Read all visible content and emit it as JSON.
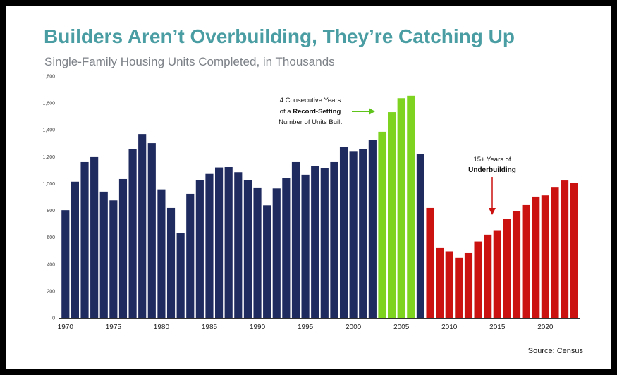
{
  "title": "Builders Aren’t Overbuilding, They’re Catching Up",
  "subtitle": "Single-Family Housing Units Completed, in Thousands",
  "source": "Source: Census",
  "colors": {
    "normal": "#1f2a5f",
    "record": "#7ed321",
    "under": "#cc1111",
    "title": "#4a9ea3"
  },
  "annotations": {
    "record": {
      "line1": "4 Consecutive Years",
      "line2_pre": "of a ",
      "line2_bold": "Record-Setting",
      "line3": "Number of Units Built"
    },
    "under": {
      "line1": "15+ Years of",
      "line2": "Underbuilding"
    }
  },
  "chart_data": {
    "type": "bar",
    "title": "Builders Aren’t Overbuilding, They’re Catching Up",
    "subtitle": "Single-Family Housing Units Completed, in Thousands",
    "ylim": [
      0,
      1800
    ],
    "yticks": [
      0,
      200,
      400,
      600,
      800,
      1000,
      1200,
      1400,
      1600,
      1800
    ],
    "ytick_labels": [
      "0",
      "200",
      "400",
      "600",
      "800",
      "1,000",
      "1,200",
      "1,400",
      "1,600",
      "1,800"
    ],
    "xticks": [
      "1970",
      "1975",
      "1980",
      "1985",
      "1990",
      "1995",
      "2000",
      "2005",
      "2010",
      "2015",
      "2020"
    ],
    "categories": [
      1970,
      1971,
      1972,
      1973,
      1974,
      1975,
      1976,
      1977,
      1978,
      1979,
      1980,
      1981,
      1982,
      1983,
      1984,
      1985,
      1986,
      1987,
      1988,
      1989,
      1990,
      1991,
      1992,
      1993,
      1994,
      1995,
      1996,
      1997,
      1998,
      1999,
      2000,
      2001,
      2002,
      2003,
      2004,
      2005,
      2006,
      2007,
      2008,
      2009,
      2010,
      2011,
      2012,
      2013,
      2014,
      2015,
      2016,
      2017,
      2018,
      2019,
      2020,
      2021,
      2022,
      2023
    ],
    "values": [
      802,
      1014,
      1160,
      1197,
      940,
      875,
      1034,
      1258,
      1369,
      1301,
      957,
      819,
      631,
      924,
      1025,
      1072,
      1120,
      1123,
      1085,
      1026,
      966,
      838,
      964,
      1039,
      1160,
      1066,
      1129,
      1116,
      1160,
      1270,
      1242,
      1256,
      1325,
      1386,
      1532,
      1636,
      1654,
      1218,
      819,
      520,
      496,
      447,
      483,
      569,
      620,
      648,
      738,
      795,
      840,
      903,
      912,
      970,
      1023,
      1005
    ],
    "groups": [
      "normal",
      "normal",
      "normal",
      "normal",
      "normal",
      "normal",
      "normal",
      "normal",
      "normal",
      "normal",
      "normal",
      "normal",
      "normal",
      "normal",
      "normal",
      "normal",
      "normal",
      "normal",
      "normal",
      "normal",
      "normal",
      "normal",
      "normal",
      "normal",
      "normal",
      "normal",
      "normal",
      "normal",
      "normal",
      "normal",
      "normal",
      "normal",
      "normal",
      "record",
      "record",
      "record",
      "record",
      "normal",
      "under",
      "under",
      "under",
      "under",
      "under",
      "under",
      "under",
      "under",
      "under",
      "under",
      "under",
      "under",
      "under",
      "under",
      "under",
      "under"
    ],
    "grid": false,
    "legend": "none"
  }
}
